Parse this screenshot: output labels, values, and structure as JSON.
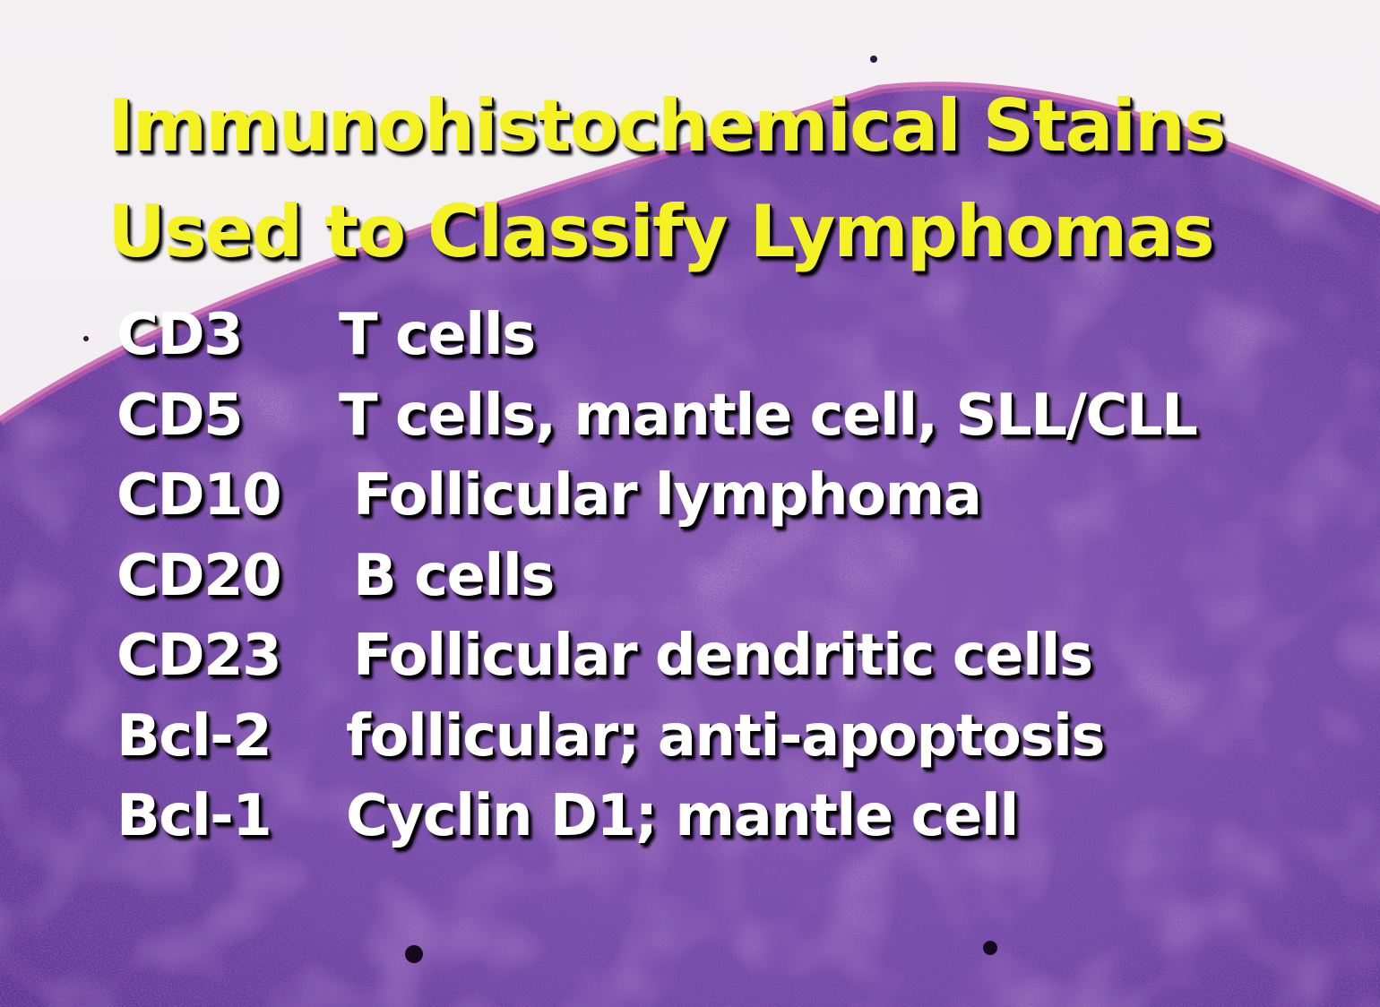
{
  "slide": {
    "title_line1": "Immunohistochemical Stains",
    "title_line2": "Used to Classify Lymphomas",
    "title_color": "#f5f224",
    "text_color": "#ffffff",
    "background_image": "H&E-stained lymph node histology section",
    "stains": [
      {
        "marker": "CD3",
        "description": "T cells"
      },
      {
        "marker": "CD5",
        "description": "T cells, mantle cell, SLL/CLL"
      },
      {
        "marker": "CD10",
        "description": "Follicular lymphoma"
      },
      {
        "marker": "CD20",
        "description": "B cells"
      },
      {
        "marker": "CD23",
        "description": "Follicular dendritic cells"
      },
      {
        "marker": "Bcl-2",
        "description": "follicular; anti-apoptosis"
      },
      {
        "marker": "Bcl-1",
        "description": "Cyclin D1; mantle cell"
      }
    ]
  }
}
